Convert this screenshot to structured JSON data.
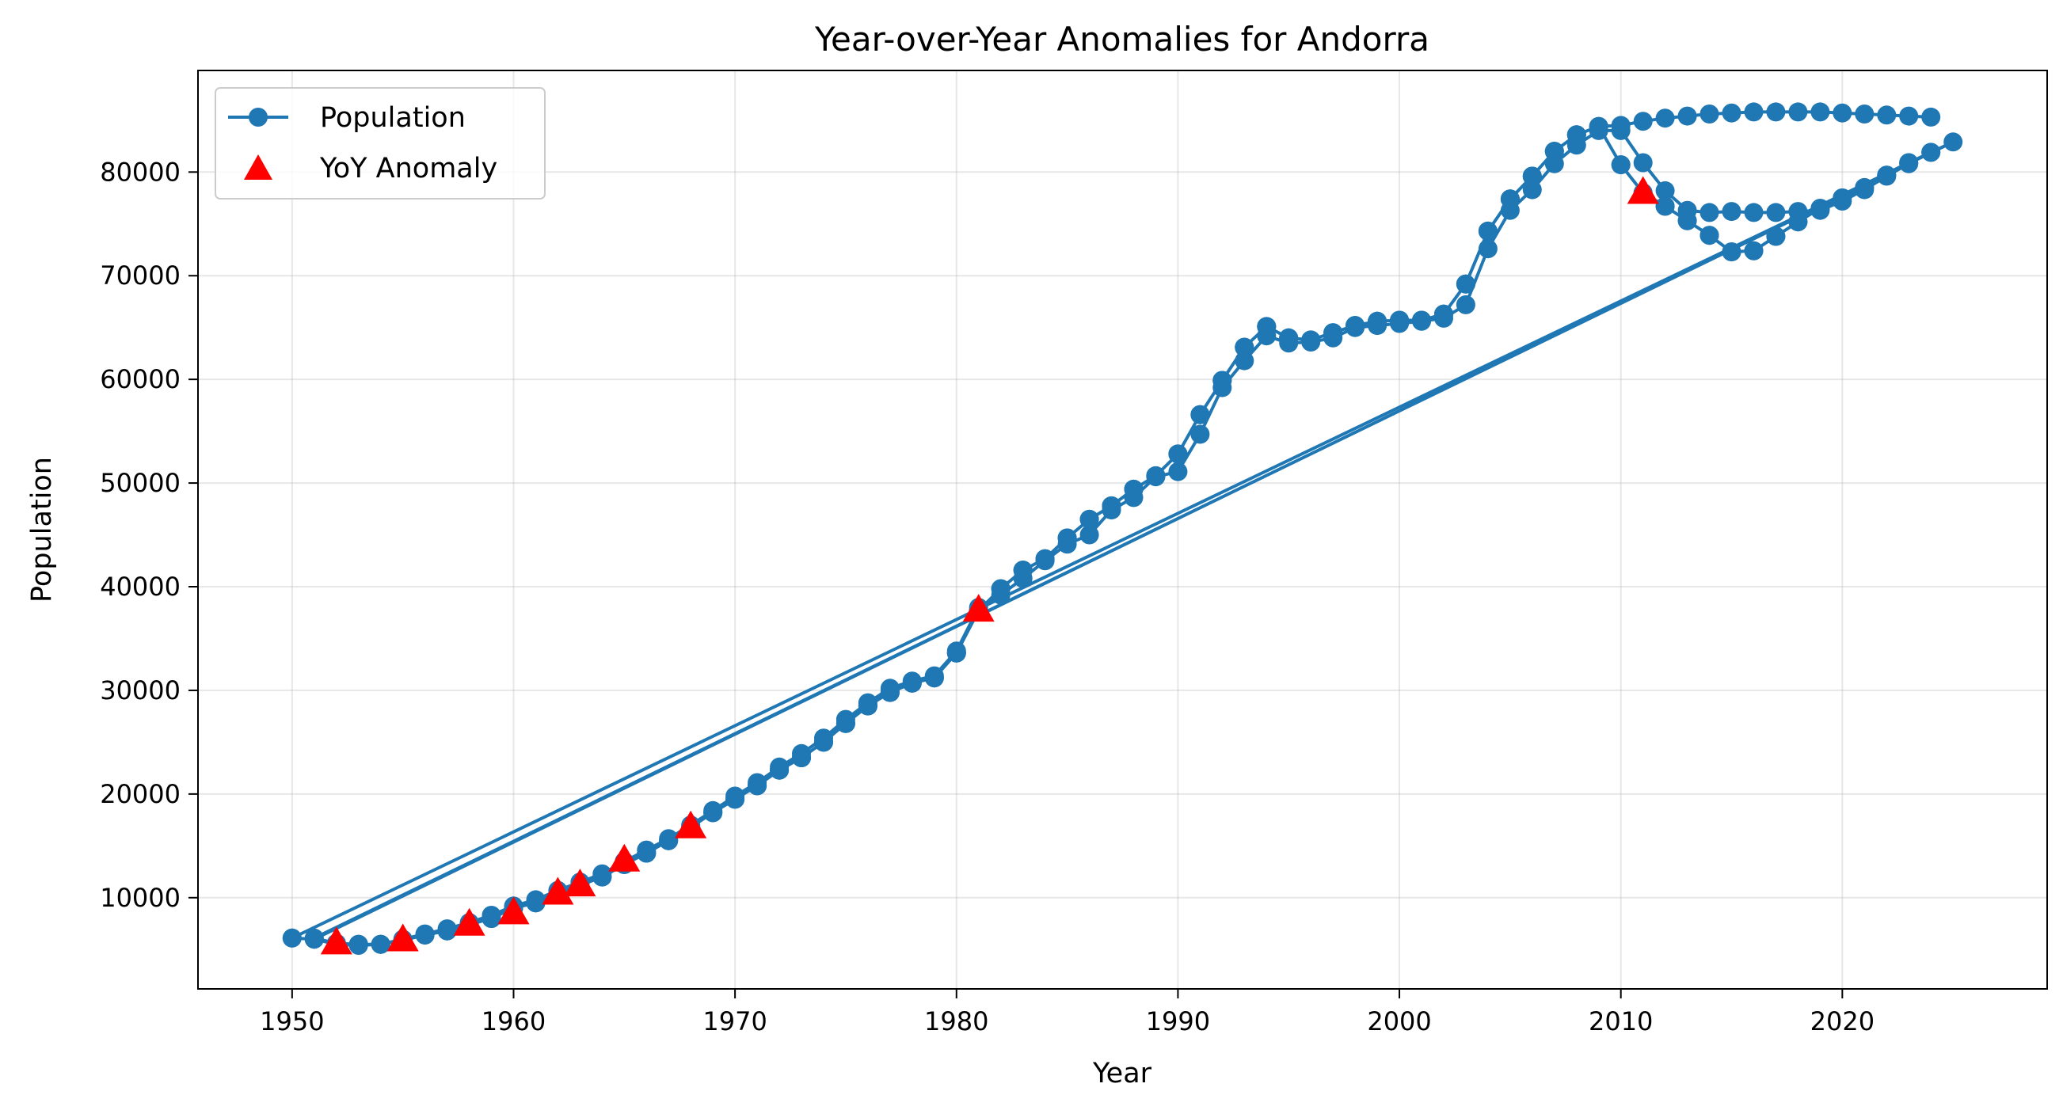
{
  "chart_data": {
    "type": "line",
    "title": "Year-over-Year Anomalies for Andorra",
    "xlabel": "Year",
    "ylabel": "Population",
    "xlim": [
      1945.75,
      2029.25
    ],
    "ylim": [
      1200,
      89800
    ],
    "x_ticks": [
      1950,
      1960,
      1970,
      1980,
      1990,
      2000,
      2010,
      2020
    ],
    "y_ticks": [
      10000,
      20000,
      30000,
      40000,
      50000,
      60000,
      70000,
      80000
    ],
    "grid": true,
    "legend_position": "upper-left",
    "colors": {
      "line": "#1f77b4",
      "anomaly": "#ff0000"
    },
    "series": [
      {
        "name": "Population",
        "style": "line-with-circle-markers",
        "segments": [
          {
            "x": [
              1950,
              1951,
              1952,
              1953,
              1954,
              1955,
              1956,
              1957,
              1958,
              1959,
              1960,
              1961,
              1962,
              1963,
              1964,
              1965,
              1966,
              1967,
              1968,
              1969,
              1970,
              1971,
              1972,
              1973,
              1974,
              1975,
              1976,
              1977,
              1978,
              1979,
              1980,
              1981,
              1982,
              1983,
              1984,
              1985,
              1986,
              1987,
              1988,
              1989,
              1990,
              1991,
              1992,
              1993,
              1994,
              1995,
              1996,
              1997,
              1998,
              1999,
              2000,
              2001,
              2002,
              2003,
              2004,
              2005,
              2006,
              2007,
              2008,
              2009,
              2010,
              2011,
              2012,
              2013,
              2014,
              2015,
              2016,
              2017,
              2018,
              2019,
              2020,
              2021,
              2022,
              2023
            ],
            "y": [
              6100,
              6000,
              5600,
              5500,
              5500,
              5900,
              6400,
              6800,
              7400,
              8000,
              9000,
              9500,
              10400,
              11200,
              12000,
              13200,
              14300,
              15500,
              16800,
              18200,
              19500,
              20800,
              22300,
              23500,
              25000,
              26800,
              28500,
              29800,
              30700,
              31200,
              33600,
              37700,
              39800,
              41600,
              42700,
              44700,
              46500,
              47800,
              49400,
              50700,
              52800,
              56600,
              59900,
              63100,
              65100,
              64000,
              63800,
              64500,
              65200,
              65600,
              65700,
              65700,
              66300,
              69200,
              74300,
              77400,
              79600,
              82000,
              83600,
              84400,
              80700,
              78000,
              76700,
              75300,
              73900,
              72300,
              72400,
              73800,
              75200,
              76500,
              77500,
              78500,
              79700,
              80900
            ]
          },
          {
            "x": [
              1951,
              1952,
              1953,
              1954,
              1955,
              1956,
              1957,
              1958,
              1959,
              1960,
              1961,
              1962,
              1963,
              1964,
              1965,
              1966,
              1967,
              1968,
              1969,
              1970,
              1971,
              1972,
              1973,
              1974,
              1975,
              1976,
              1977,
              1978,
              1979,
              1980,
              1981,
              1982,
              1983,
              1984,
              1985,
              1986,
              1987,
              1988,
              1989,
              1990,
              1991,
              1992,
              1993,
              1994,
              1995,
              1996,
              1997,
              1998,
              1999,
              2000,
              2001,
              2002,
              2003,
              2004,
              2005,
              2006,
              2007,
              2008,
              2009,
              2010,
              2011,
              2012,
              2013,
              2014,
              2015,
              2016,
              2017,
              2018,
              2019,
              2020,
              2021,
              2022,
              2023,
              2024
            ],
            "y": [
              6000,
              5500,
              5400,
              5500,
              6000,
              6500,
              7000,
              7600,
              8300,
              9200,
              9800,
              10700,
              11500,
              12300,
              13500,
              14600,
              15700,
              17000,
              18400,
              19800,
              21100,
              22600,
              23900,
              25400,
              27200,
              28800,
              30200,
              30900,
              31400,
              33800,
              38000,
              39200,
              40800,
              42500,
              44100,
              45000,
              47400,
              48600,
              50600,
              51100,
              54700,
              59200,
              61800,
              64200,
              63500,
              63600,
              64000,
              65000,
              65200,
              65400,
              65600,
              65900,
              67200,
              72600,
              76300,
              78300,
              80800,
              82600,
              84000,
              84000,
              80900,
              78200,
              76300,
              76100,
              76200,
              76100,
              76100,
              76200,
              76300,
              77200,
              78300,
              79600,
              80800,
              81900
            ]
          },
          {
            "x": [
              1950,
              1951,
              1952,
              1953,
              1954,
              1955,
              1956,
              1957,
              1958,
              1959,
              1960,
              1961,
              1962,
              1963,
              1964,
              1965,
              1966,
              1967,
              1968,
              1969,
              1970,
              1971,
              1972,
              1973,
              1974,
              1975,
              1976,
              1977,
              1978,
              1979,
              1980,
              1981,
              1982,
              1983,
              1984,
              1985,
              1986,
              1987,
              1988,
              1989,
              1990,
              1991,
              1992,
              1993,
              1994,
              1995,
              1996,
              1997,
              1998,
              1999,
              2000,
              2001,
              2002,
              2003,
              2004,
              2005,
              2006,
              2007,
              2008,
              2009,
              2010,
              2011,
              2012,
              2013,
              2014,
              2015,
              2016,
              2017,
              2018,
              2019,
              2020,
              2021,
              2022,
              2023,
              2024,
              2025
            ],
            "y": [
              6100,
              6000,
              5600,
              5500,
              5500,
              5900,
              6400,
              6800,
              7400,
              8000,
              9000,
              9500,
              10400,
              11200,
              12000,
              13200,
              14300,
              15500,
              16800,
              18200,
              19500,
              20800,
              22300,
              23500,
              25000,
              26800,
              28500,
              29800,
              30700,
              31200,
              33600,
              37700,
              39800,
              41600,
              42700,
              44700,
              46500,
              47800,
              49400,
              50700,
              52800,
              56600,
              59900,
              63100,
              65100,
              64000,
              63800,
              64500,
              65200,
              65600,
              65700,
              65700,
              66300,
              69200,
              74300,
              77400,
              79600,
              82000,
              83600,
              84400,
              80700,
              78000,
              76700,
              75300,
              73900,
              72300,
              72400,
              73800,
              75200,
              76500,
              77500,
              78500,
              79700,
              80900,
              81900,
              82900
            ]
          },
          {
            "x": [
              1951,
              1952,
              1953,
              1954,
              1955,
              1956,
              1957,
              1958,
              1959,
              1960,
              1961,
              1962,
              1963,
              1964,
              1965,
              1966,
              1967,
              1968,
              1969,
              1970,
              1971,
              1972,
              1973,
              1974,
              1975,
              1976,
              1977,
              1978,
              1979,
              1980,
              1981,
              1982,
              1983,
              1984,
              1985,
              1986,
              1987,
              1988,
              1989,
              1990,
              1991,
              1992,
              1993,
              1994,
              1995,
              1996,
              1997,
              1998,
              1999,
              2000,
              2001,
              2002,
              2003,
              2004,
              2005,
              2006,
              2007,
              2008,
              2009,
              2010,
              2011,
              2012,
              2013,
              2014,
              2015,
              2016,
              2017,
              2018,
              2019,
              2020,
              2021,
              2022,
              2023,
              2024
            ],
            "y": [
              6100,
              5600,
              5500,
              5500,
              5900,
              6400,
              6800,
              7400,
              8000,
              9000,
              9500,
              10400,
              11200,
              12000,
              13200,
              14300,
              15500,
              16800,
              18200,
              19500,
              20800,
              22300,
              23500,
              25000,
              26800,
              28500,
              29800,
              30700,
              31200,
              33600,
              37700,
              39800,
              41600,
              42700,
              44700,
              46500,
              47800,
              49400,
              50700,
              52800,
              56600,
              59900,
              63100,
              65100,
              64000,
              63800,
              64500,
              65200,
              65600,
              65700,
              65700,
              66300,
              69200,
              74300,
              77400,
              79600,
              82000,
              83600,
              84400,
              84500,
              84900,
              85200,
              85400,
              85600,
              85700,
              85800,
              85800,
              85800,
              85800,
              85700,
              85600,
              85500,
              85400,
              85300
            ]
          }
        ]
      },
      {
        "name": "YoY Anomaly",
        "style": "red-triangle-markers",
        "x": [
          1952,
          1955,
          1958,
          1960,
          1962,
          1963,
          1965,
          1968,
          1981,
          2011
        ],
        "y": [
          5600,
          5900,
          7400,
          8500,
          10400,
          11200,
          13600,
          16800,
          37700,
          78000
        ]
      }
    ]
  }
}
